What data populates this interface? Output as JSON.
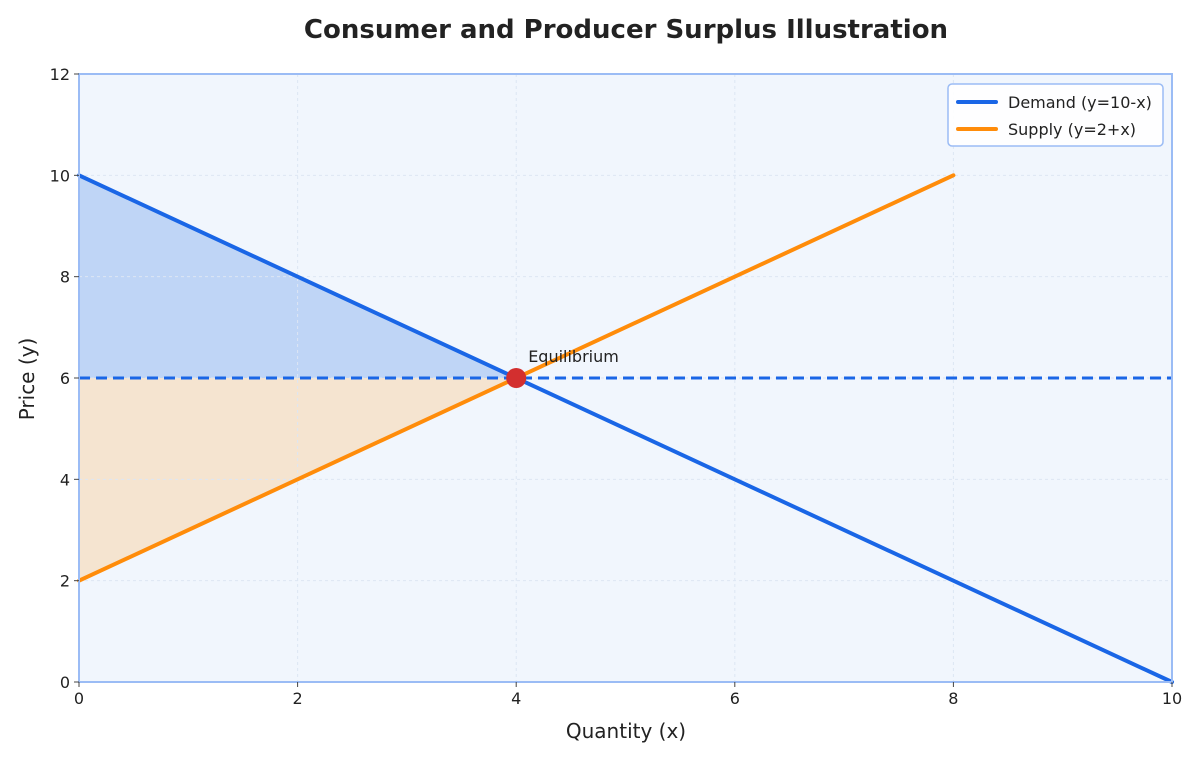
{
  "chart_data": {
    "type": "line",
    "title": "Consumer and Producer Surplus Illustration",
    "xlabel": "Quantity (x)",
    "ylabel": "Price (y)",
    "xlim": [
      0,
      10
    ],
    "ylim": [
      0,
      12
    ],
    "xticks": [
      0,
      2,
      4,
      6,
      8,
      10
    ],
    "yticks": [
      0,
      2,
      4,
      6,
      8,
      10,
      12
    ],
    "grid": true,
    "legend_position": "top-right",
    "series": [
      {
        "name": "Demand (y=10-x)",
        "color": "#1a66e6",
        "x": [
          0,
          10
        ],
        "y": [
          10,
          0
        ]
      },
      {
        "name": "Supply (y=2+x)",
        "color": "#ff8c0a",
        "x": [
          0,
          8
        ],
        "y": [
          2,
          10
        ]
      }
    ],
    "equilibrium": {
      "x": 4,
      "y": 6,
      "label": "Equilibrium",
      "color": "#d32f2f"
    },
    "price_line": {
      "y": 6,
      "style": "dashed",
      "color": "#1a66e6"
    },
    "shaded_regions": [
      {
        "name": "consumer-surplus",
        "color": "#b6cff5",
        "polygon": [
          [
            0,
            6
          ],
          [
            0,
            10
          ],
          [
            4,
            6
          ]
        ]
      },
      {
        "name": "producer-surplus",
        "color": "#f6e0c8",
        "polygon": [
          [
            0,
            2
          ],
          [
            0,
            6
          ],
          [
            4,
            6
          ]
        ]
      }
    ],
    "colors": {
      "plot_background": "#f1f6fd",
      "plot_border": "#9bbcf5",
      "grid": "#dde6f3"
    }
  }
}
